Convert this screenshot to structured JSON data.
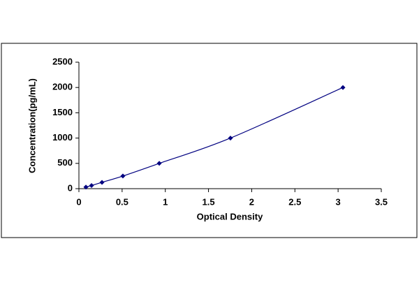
{
  "chart_data": {
    "type": "scatter",
    "x_label": "Optical Density",
    "y_label": "Concentration(pg/mL)",
    "x": [
      0.081,
      0.146,
      0.267,
      0.509,
      0.93,
      1.754,
      3.056
    ],
    "values": [
      31.25,
      62.5,
      125,
      250,
      500,
      1000,
      2000
    ],
    "color": "#000080",
    "line": true,
    "xlim": [
      0,
      3.5
    ],
    "xticks": [
      0,
      0.5,
      1,
      1.5,
      2,
      2.5,
      3,
      3.5
    ],
    "ylim": [
      0,
      2500
    ],
    "yticks": [
      0,
      500,
      1000,
      1500,
      2000,
      2500
    ]
  }
}
